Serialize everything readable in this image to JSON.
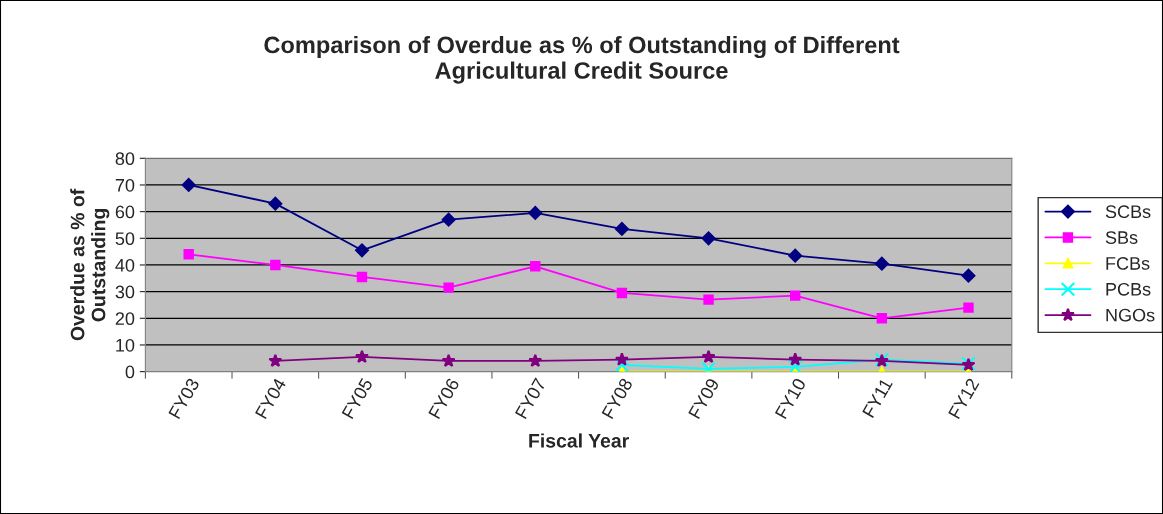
{
  "chart_data": {
    "type": "line",
    "title": "Comparison of Overdue as % of Outstanding of Different\nAgricultural Credit Source",
    "xlabel": "Fiscal Year",
    "ylabel": "Overdue as % of\nOutstanding",
    "categories": [
      "FY03",
      "FY04",
      "FY05",
      "FY06",
      "FY07",
      "FY08",
      "FY09",
      "FY10",
      "FY11",
      "FY12"
    ],
    "series": [
      {
        "name": "SCBs",
        "color": "#000080",
        "marker": "diamond",
        "values": [
          70,
          63,
          45.5,
          57,
          59.5,
          53.5,
          50,
          43.5,
          40.5,
          36
        ]
      },
      {
        "name": "SBs",
        "color": "#ff00ff",
        "marker": "square",
        "values": [
          44,
          40,
          35.5,
          31.5,
          39.5,
          29.5,
          27,
          28.5,
          20,
          24
        ]
      },
      {
        "name": "FCBs",
        "color": "#ffff00",
        "marker": "triangle",
        "values": [
          null,
          null,
          null,
          null,
          null,
          0,
          0,
          0,
          0,
          0
        ]
      },
      {
        "name": "PCBs",
        "color": "#00ffff",
        "marker": "cross",
        "values": [
          null,
          null,
          null,
          null,
          null,
          2.5,
          1,
          1.8,
          4.5,
          3
        ]
      },
      {
        "name": "NGOs",
        "color": "#800080",
        "marker": "star",
        "values": [
          null,
          4,
          5.5,
          4,
          4,
          4.5,
          5.5,
          4.5,
          4,
          2.5
        ]
      }
    ],
    "ylim": [
      0,
      80
    ],
    "yticks": [
      0,
      10,
      20,
      30,
      40,
      50,
      60,
      70,
      80
    ],
    "grid": "y",
    "legend": "right",
    "line_style": "solid"
  }
}
